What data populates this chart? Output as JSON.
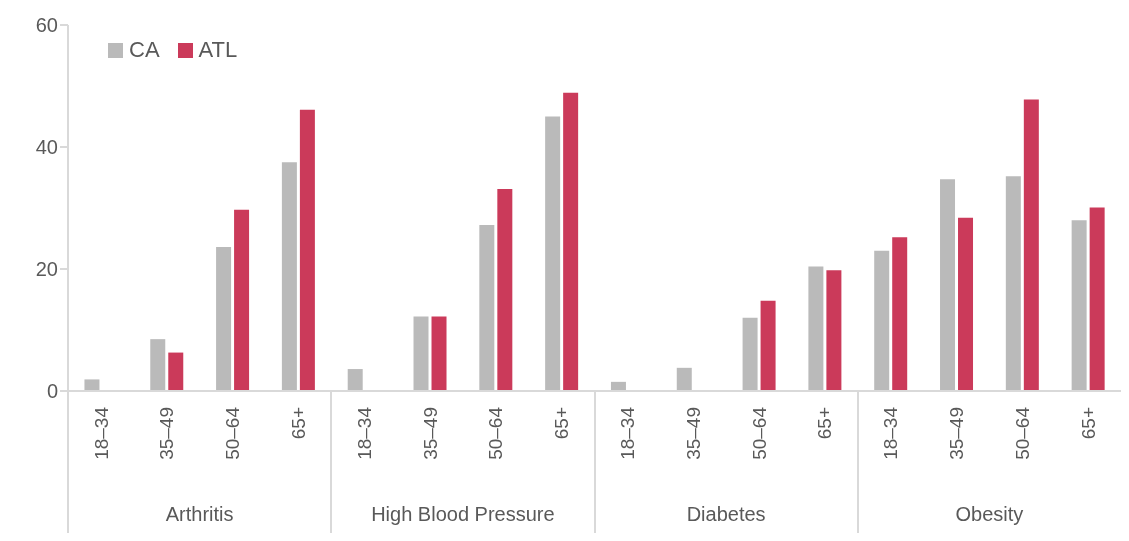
{
  "chart_data": {
    "type": "bar",
    "categories": [
      "18–34",
      "35–49",
      "50–64",
      "65+",
      "18–34",
      "35–49",
      "50–64",
      "65+",
      "18–34",
      "35–49",
      "50–64",
      "65+",
      "18–34",
      "35–49",
      "50–64",
      "65+"
    ],
    "series": [
      {
        "name": "CA",
        "color": "#bababa",
        "values": [
          1.9,
          8.5,
          23.6,
          37.5,
          3.6,
          12.2,
          27.2,
          45.0,
          1.5,
          3.8,
          12.0,
          20.4,
          23.0,
          34.7,
          35.2,
          28.0
        ]
      },
      {
        "name": "ATL",
        "color": "#cb3a5a",
        "values": [
          null,
          6.3,
          29.7,
          46.1,
          null,
          12.2,
          33.1,
          48.9,
          null,
          null,
          14.8,
          19.8,
          25.2,
          28.4,
          47.8,
          30.1
        ]
      }
    ],
    "annotations": [
      "Arthritis",
      "High Blood Pressure",
      "Diabetes",
      "Obesity"
    ],
    "ylim": [
      0,
      60
    ],
    "yticks": [
      0,
      20,
      40,
      60
    ],
    "grid": false,
    "legend": "top left"
  }
}
